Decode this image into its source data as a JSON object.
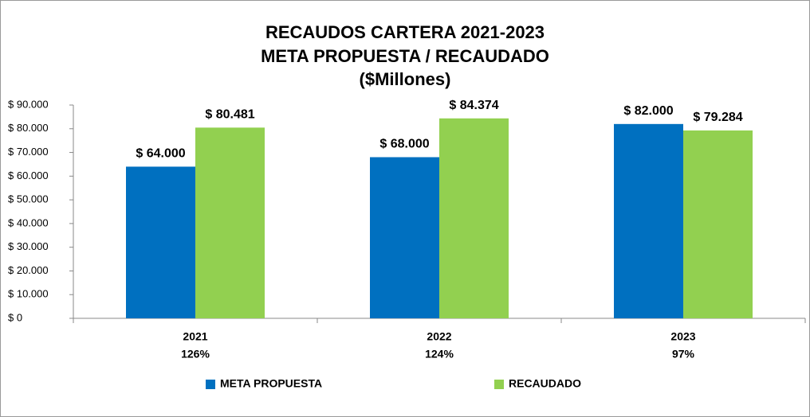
{
  "chart_data": {
    "type": "bar",
    "title": [
      "RECAUDOS CARTERA 2021-2023",
      "META PROPUESTA / RECAUDADO",
      "($Millones)"
    ],
    "categories": [
      "2021",
      "2022",
      "2023"
    ],
    "category_notes": [
      "126%",
      "124%",
      "97%"
    ],
    "series": [
      {
        "name": "META PROPUESTA",
        "color": "#0070c0",
        "values": [
          64000,
          68000,
          82000
        ],
        "value_labels": [
          "$ 64.000",
          "$ 68.000",
          "$ 82.000"
        ]
      },
      {
        "name": "RECAUDADO",
        "color": "#92d050",
        "values": [
          80481,
          84374,
          79284
        ],
        "value_labels": [
          "$ 80.481",
          "$ 84.374",
          "$ 79.284"
        ]
      }
    ],
    "ylim": [
      0,
      90000
    ],
    "yticks": [
      {
        "value": 0,
        "label": "$ 0"
      },
      {
        "value": 10000,
        "label": "$ 10.000"
      },
      {
        "value": 20000,
        "label": "$ 20.000"
      },
      {
        "value": 30000,
        "label": "$ 30.000"
      },
      {
        "value": 40000,
        "label": "$ 40.000"
      },
      {
        "value": 50000,
        "label": "$ 50.000"
      },
      {
        "value": 60000,
        "label": "$ 60.000"
      },
      {
        "value": 70000,
        "label": "$ 70.000"
      },
      {
        "value": 80000,
        "label": "$ 80.000"
      },
      {
        "value": 90000,
        "label": "$ 90.000"
      }
    ],
    "grid": false,
    "legend": "bottom"
  }
}
